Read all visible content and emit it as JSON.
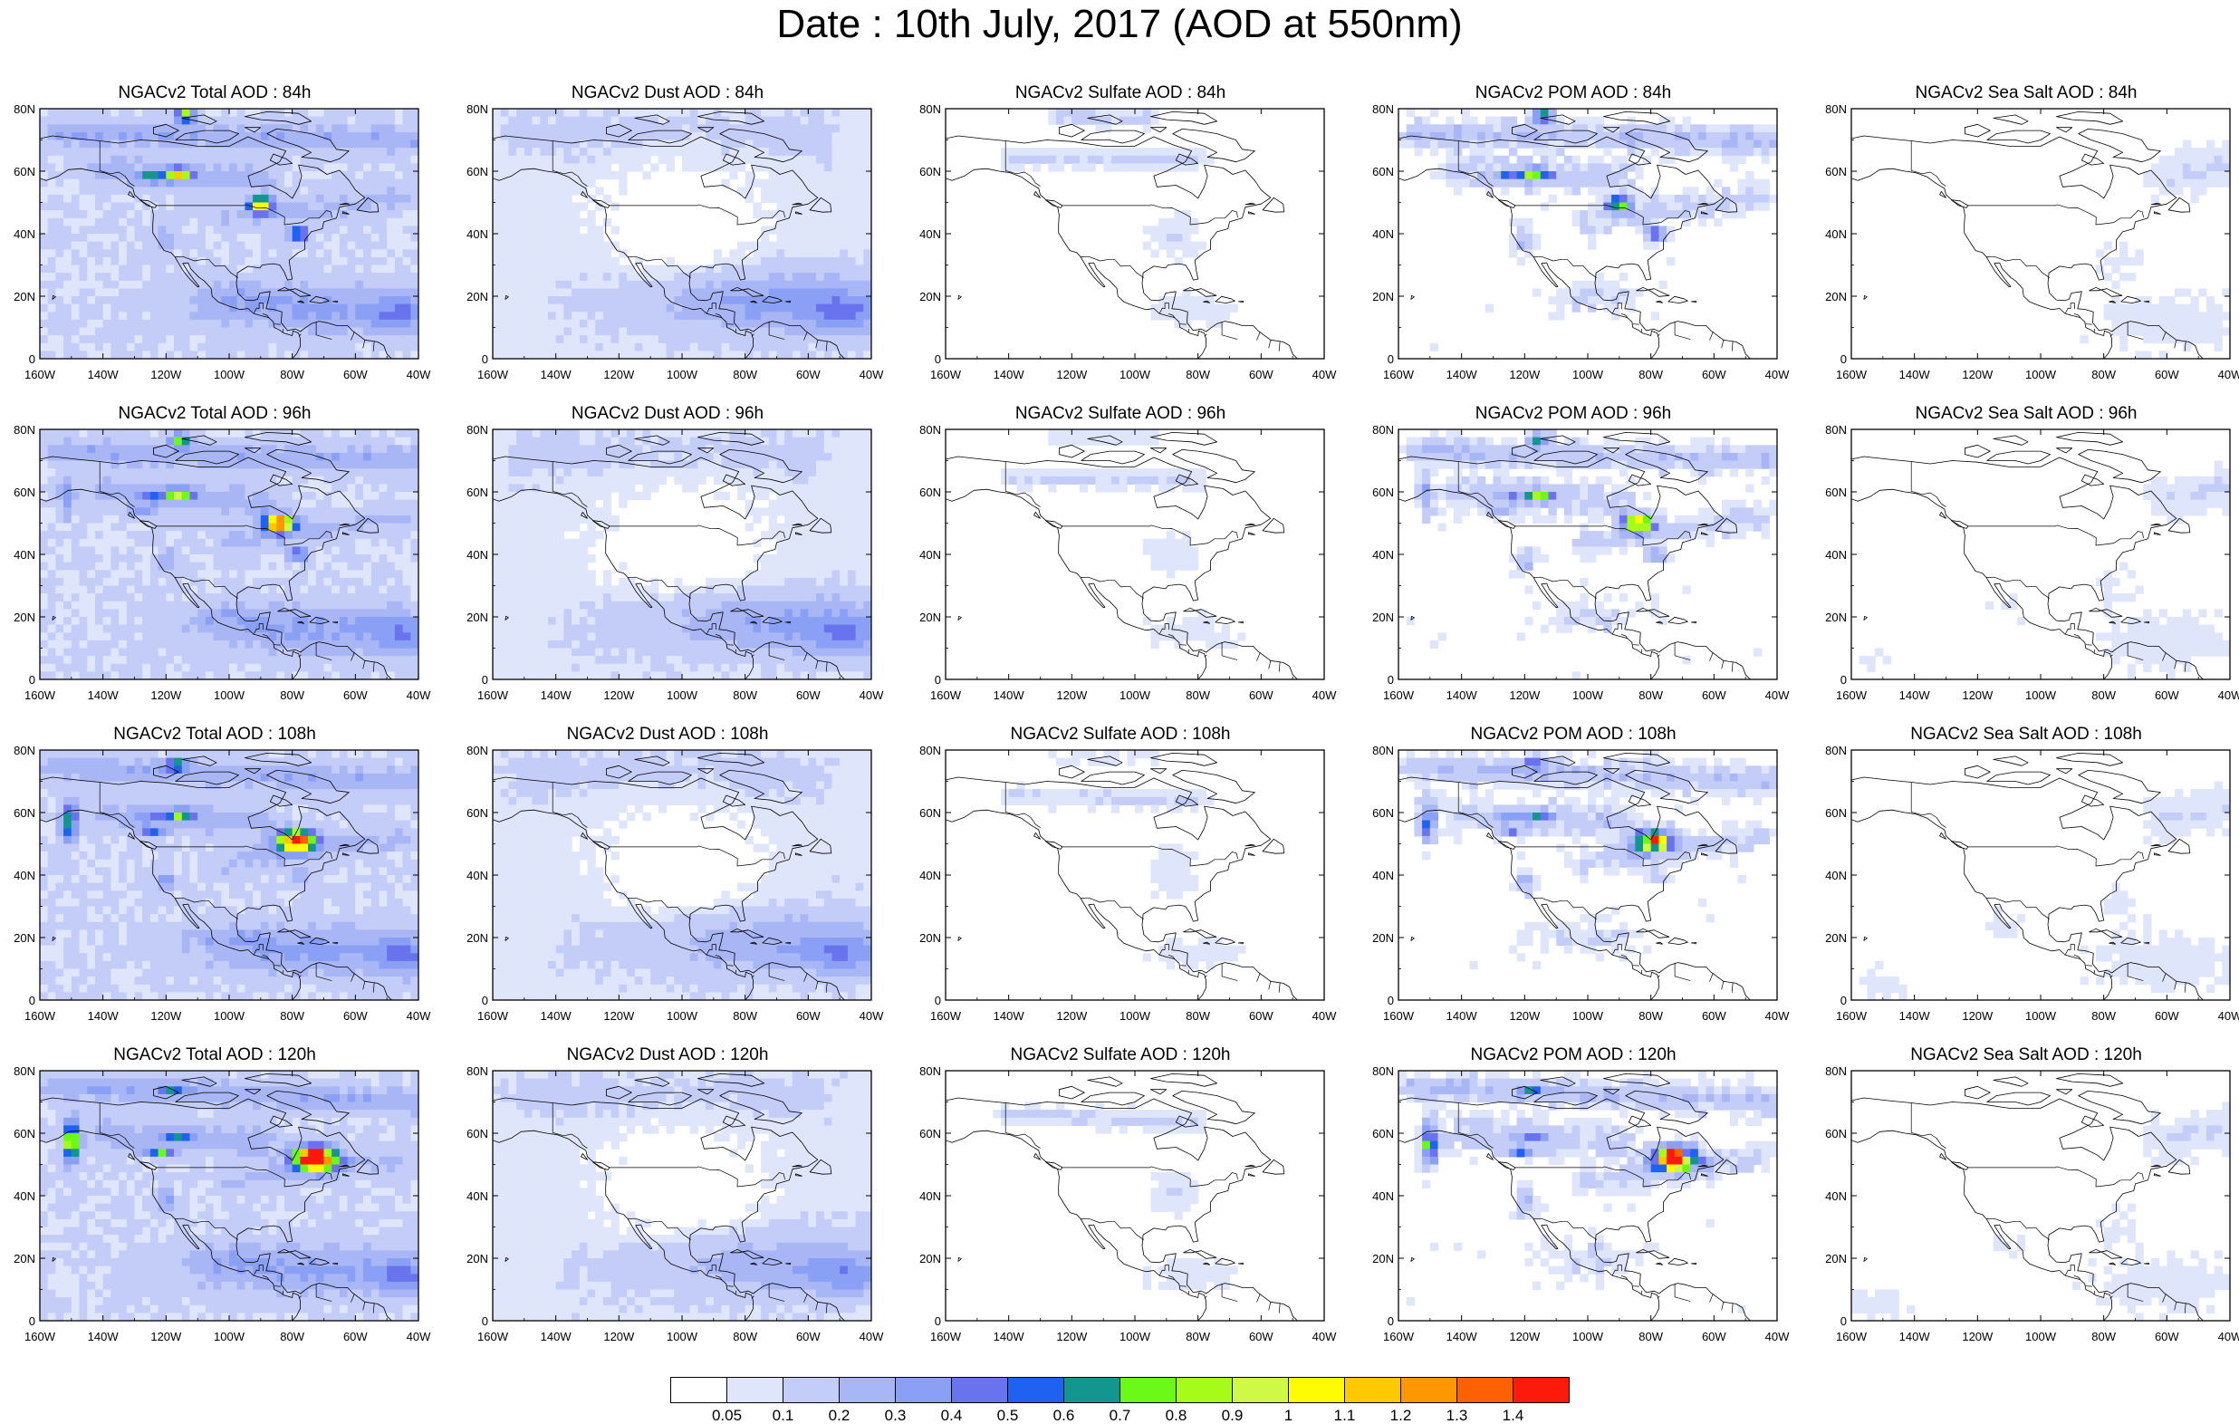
{
  "title": "Date : 10th July, 2017 (AOD at 550nm)",
  "x_ticks": [
    "160W",
    "140W",
    "120W",
    "100W",
    "80W",
    "60W",
    "40W"
  ],
  "y_ticks": [
    "80N",
    "60N",
    "40N",
    "20N",
    "0"
  ],
  "panels": [
    {
      "title": "NGACv2 Total AOD : 84h",
      "var": "total",
      "hour": 84
    },
    {
      "title": "NGACv2 Dust AOD : 84h",
      "var": "dust",
      "hour": 84
    },
    {
      "title": "NGACv2 Sulfate AOD : 84h",
      "var": "sulfate",
      "hour": 84
    },
    {
      "title": "NGACv2 POM AOD : 84h",
      "var": "pom",
      "hour": 84
    },
    {
      "title": "NGACv2 Sea Salt AOD : 84h",
      "var": "seasalt",
      "hour": 84
    },
    {
      "title": "NGACv2 Total AOD : 96h",
      "var": "total",
      "hour": 96
    },
    {
      "title": "NGACv2 Dust AOD : 96h",
      "var": "dust",
      "hour": 96
    },
    {
      "title": "NGACv2 Sulfate AOD : 96h",
      "var": "sulfate",
      "hour": 96
    },
    {
      "title": "NGACv2 POM AOD : 96h",
      "var": "pom",
      "hour": 96
    },
    {
      "title": "NGACv2 Sea Salt AOD : 96h",
      "var": "seasalt",
      "hour": 96
    },
    {
      "title": "NGACv2 Total AOD : 108h",
      "var": "total",
      "hour": 108
    },
    {
      "title": "NGACv2 Dust AOD : 108h",
      "var": "dust",
      "hour": 108
    },
    {
      "title": "NGACv2 Sulfate AOD : 108h",
      "var": "sulfate",
      "hour": 108
    },
    {
      "title": "NGACv2 POM AOD : 108h",
      "var": "pom",
      "hour": 108
    },
    {
      "title": "NGACv2 Sea Salt AOD : 108h",
      "var": "seasalt",
      "hour": 108
    },
    {
      "title": "NGACv2 Total AOD : 120h",
      "var": "total",
      "hour": 120
    },
    {
      "title": "NGACv2 Dust AOD : 120h",
      "var": "dust",
      "hour": 120
    },
    {
      "title": "NGACv2 Sulfate AOD : 120h",
      "var": "sulfate",
      "hour": 120
    },
    {
      "title": "NGACv2 POM AOD : 120h",
      "var": "pom",
      "hour": 120
    },
    {
      "title": "NGACv2 Sea Salt  AOD : 120h",
      "var": "seasalt",
      "hour": 120
    }
  ],
  "colorbar": {
    "levels": [
      "0.05",
      "0.1",
      "0.2",
      "0.3",
      "0.4",
      "0.5",
      "0.6",
      "0.7",
      "0.8",
      "0.9",
      "1",
      "1.1",
      "1.2",
      "1.3",
      "1.4"
    ],
    "colors": [
      "#ffffff",
      "#dfe6fb",
      "#c3cdf8",
      "#a9b6f5",
      "#8aa0f4",
      "#6a73ee",
      "#1f62f2",
      "#12968f",
      "#6bfa18",
      "#a7fb19",
      "#d0f846",
      "#fffb00",
      "#ffc900",
      "#ff9700",
      "#fe6103",
      "#fe1a0b"
    ]
  }
}
